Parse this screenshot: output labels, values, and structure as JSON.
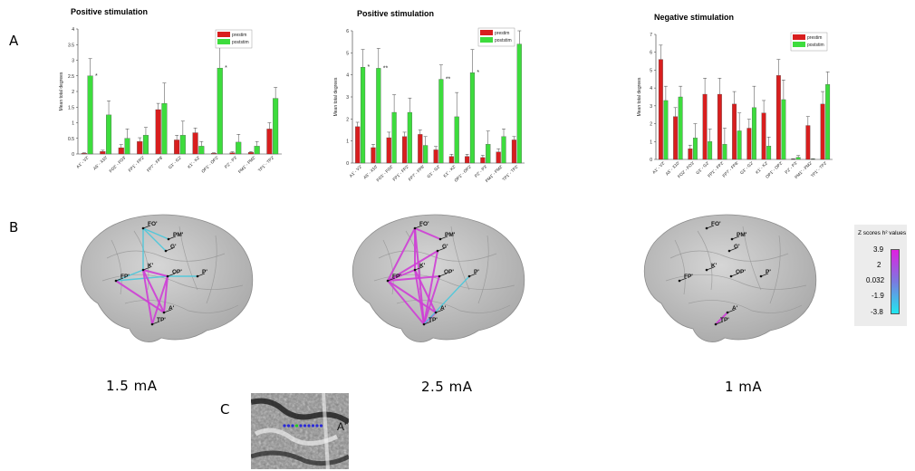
{
  "panel_labels": {
    "a": "A",
    "b": "B",
    "c": "C"
  },
  "chart_data": [
    {
      "type": "bar",
      "title": "Positive stimulation",
      "ylabel": "Mean total degrees",
      "ylim": [
        0,
        4
      ],
      "yticks": [
        "0",
        "0.5",
        "1",
        "1.5",
        "2",
        "2.5",
        "3",
        "3.5",
        "4"
      ],
      "categories": [
        "A1' - V2'",
        "A5' - X10'",
        "FO2' - FO3'",
        "FP1' - FP2'",
        "FP7' - FP8'",
        "G1' - G2'",
        "K1' - K2'",
        "OP1' - OP2'",
        "P2' - P3'",
        "PM1' - PM2'",
        "TP1' - TP2'"
      ],
      "series": [
        {
          "name": "prestim",
          "color": "#d81e1e",
          "values": [
            0.02,
            0.08,
            0.2,
            0.4,
            1.42,
            0.45,
            0.68,
            0.02,
            0.04,
            0.05,
            0.8
          ],
          "errors": [
            0.02,
            0.04,
            0.1,
            0.12,
            0.2,
            0.15,
            0.15,
            0.02,
            0.03,
            0.03,
            0.2
          ]
        },
        {
          "name": "poststim",
          "color": "#3ddc3d",
          "values": [
            2.5,
            1.25,
            0.5,
            0.6,
            1.62,
            0.6,
            0.25,
            2.75,
            0.38,
            0.25,
            1.78
          ],
          "errors": [
            0.55,
            0.45,
            0.3,
            0.25,
            0.65,
            0.45,
            0.15,
            0.85,
            0.25,
            0.15,
            0.35
          ]
        }
      ],
      "asterisks": [
        "*",
        "",
        "",
        "",
        "",
        "",
        "",
        "*",
        "",
        "",
        ""
      ]
    },
    {
      "type": "bar",
      "title": "Positive stimulation",
      "ylabel": "Mean total degrees",
      "ylim": [
        0,
        6
      ],
      "yticks": [
        "0",
        "1",
        "2",
        "3",
        "4",
        "5",
        "6"
      ],
      "categories": [
        "A1' - V2'",
        "A5' - X10'",
        "FO1' - FO2'",
        "FP1' - FP2'",
        "FP7' - FP8'",
        "G1' - G2'",
        "K1' - K2'",
        "OP1' - OP2'",
        "P2' - P3'",
        "PM1' - PM2'",
        "TP1' - TP2'"
      ],
      "series": [
        {
          "name": "prestim",
          "color": "#d81e1e",
          "values": [
            1.65,
            0.7,
            1.15,
            1.2,
            1.3,
            0.6,
            0.3,
            0.3,
            0.25,
            0.5,
            1.05
          ],
          "errors": [
            0.2,
            0.15,
            0.25,
            0.2,
            0.2,
            0.15,
            0.1,
            0.1,
            0.1,
            0.15,
            0.15
          ]
        },
        {
          "name": "poststim",
          "color": "#3ddc3d",
          "values": [
            4.35,
            4.3,
            2.3,
            2.3,
            0.8,
            3.8,
            2.1,
            4.1,
            0.85,
            1.2,
            5.4
          ],
          "errors": [
            0.8,
            0.9,
            0.8,
            0.65,
            0.4,
            0.65,
            1.1,
            1.05,
            0.6,
            0.35,
            0.6
          ]
        }
      ],
      "asterisks": [
        "*",
        "**",
        "",
        "",
        "",
        "**",
        "",
        "*",
        "",
        "",
        ""
      ]
    },
    {
      "type": "bar",
      "title": "Negative stimulation",
      "ylabel": "Mean total degrees",
      "ylim": [
        0,
        7
      ],
      "yticks": [
        "0",
        "1",
        "2",
        "3",
        "4",
        "5",
        "6",
        "7"
      ],
      "categories": [
        "A1' - V2'",
        "A5' - X10'",
        "FO2' - FO3'",
        "G1' - G2'",
        "FP1' - FP2'",
        "FP7' - FP8'",
        "G1' - G2'",
        "K1' - K2'",
        "OP1' - OP2'",
        "P2' - P3'",
        "PM1' - PM2'",
        "TP1' - TP2'"
      ],
      "series": [
        {
          "name": "prestim",
          "color": "#d81e1e",
          "values": [
            5.6,
            2.4,
            0.6,
            3.65,
            3.65,
            3.1,
            1.75,
            2.6,
            4.7,
            0.02,
            1.9,
            3.1
          ],
          "errors": [
            0.8,
            0.5,
            0.2,
            0.9,
            0.9,
            0.7,
            0.5,
            0.7,
            0.9,
            0.02,
            0.5,
            0.7
          ]
        },
        {
          "name": "poststim",
          "color": "#3ddc3d",
          "values": [
            3.3,
            3.5,
            1.2,
            1.0,
            0.85,
            1.6,
            2.9,
            0.75,
            3.35,
            0.12,
            0.02,
            4.2
          ],
          "errors": [
            0.8,
            0.6,
            0.8,
            0.7,
            0.9,
            1.0,
            1.2,
            0.5,
            1.1,
            0.1,
            0.02,
            0.7
          ]
        }
      ],
      "asterisks": [
        "",
        "",
        "",
        "",
        "",
        "",
        "",
        "",
        "",
        "",
        "",
        ""
      ]
    }
  ],
  "brains": [
    {
      "current": "1.5 mA",
      "labels": [
        "FO'",
        "PM'",
        "G'",
        "K'",
        "FP'",
        "OP'",
        "P'",
        "A'",
        "TP'"
      ]
    },
    {
      "current": "2.5 mA",
      "labels": [
        "FO'",
        "PM'",
        "G'",
        "K'",
        "FP'",
        "OP'",
        "P'",
        "A'",
        "TP'"
      ]
    },
    {
      "current": "1 mA",
      "labels": [
        "FO'",
        "PM'",
        "G'",
        "K'",
        "FP'",
        "OP'",
        "P'",
        "A'",
        "TP'"
      ]
    }
  ],
  "colorbar": {
    "title": "Z scores h² values",
    "ticks": [
      "3.9",
      "2",
      "0.032",
      "-1.9",
      "-3.8"
    ],
    "color_top": "#e020e0",
    "color_bottom": "#20e8f0"
  },
  "mri_label": "A'"
}
